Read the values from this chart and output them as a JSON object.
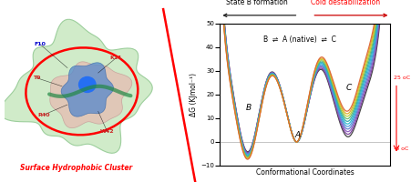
{
  "title_left": "State B formation",
  "title_right": "Cold destabilization",
  "equation_text": "B  ⇌  A (native)  ⇌  C",
  "xlabel": "Conformational Coordinates",
  "ylabel": "ΔG (KJmol⁻¹)",
  "ylim": [
    -10,
    50
  ],
  "yticks": [
    -10,
    0,
    10,
    20,
    30,
    40,
    50
  ],
  "label_B": "B",
  "label_A": "A",
  "label_C": "C",
  "temp_high": "25 oC",
  "temp_low": "-6 oC",
  "n_curves": 11,
  "colors_low_to_high": [
    "#3a3a3a",
    "#7b3f9e",
    "#8b5abf",
    "#5b7fcf",
    "#4499dd",
    "#22bbcc",
    "#33aaaa",
    "#66bb66",
    "#bbcc33",
    "#ddaa22",
    "#dd6633"
  ],
  "arrow_left_color": "#222222",
  "arrow_right_color": "#cc0000",
  "surface_cluster_text": "Surface Hydrophobic Cluster",
  "background_color": "#ffffff"
}
